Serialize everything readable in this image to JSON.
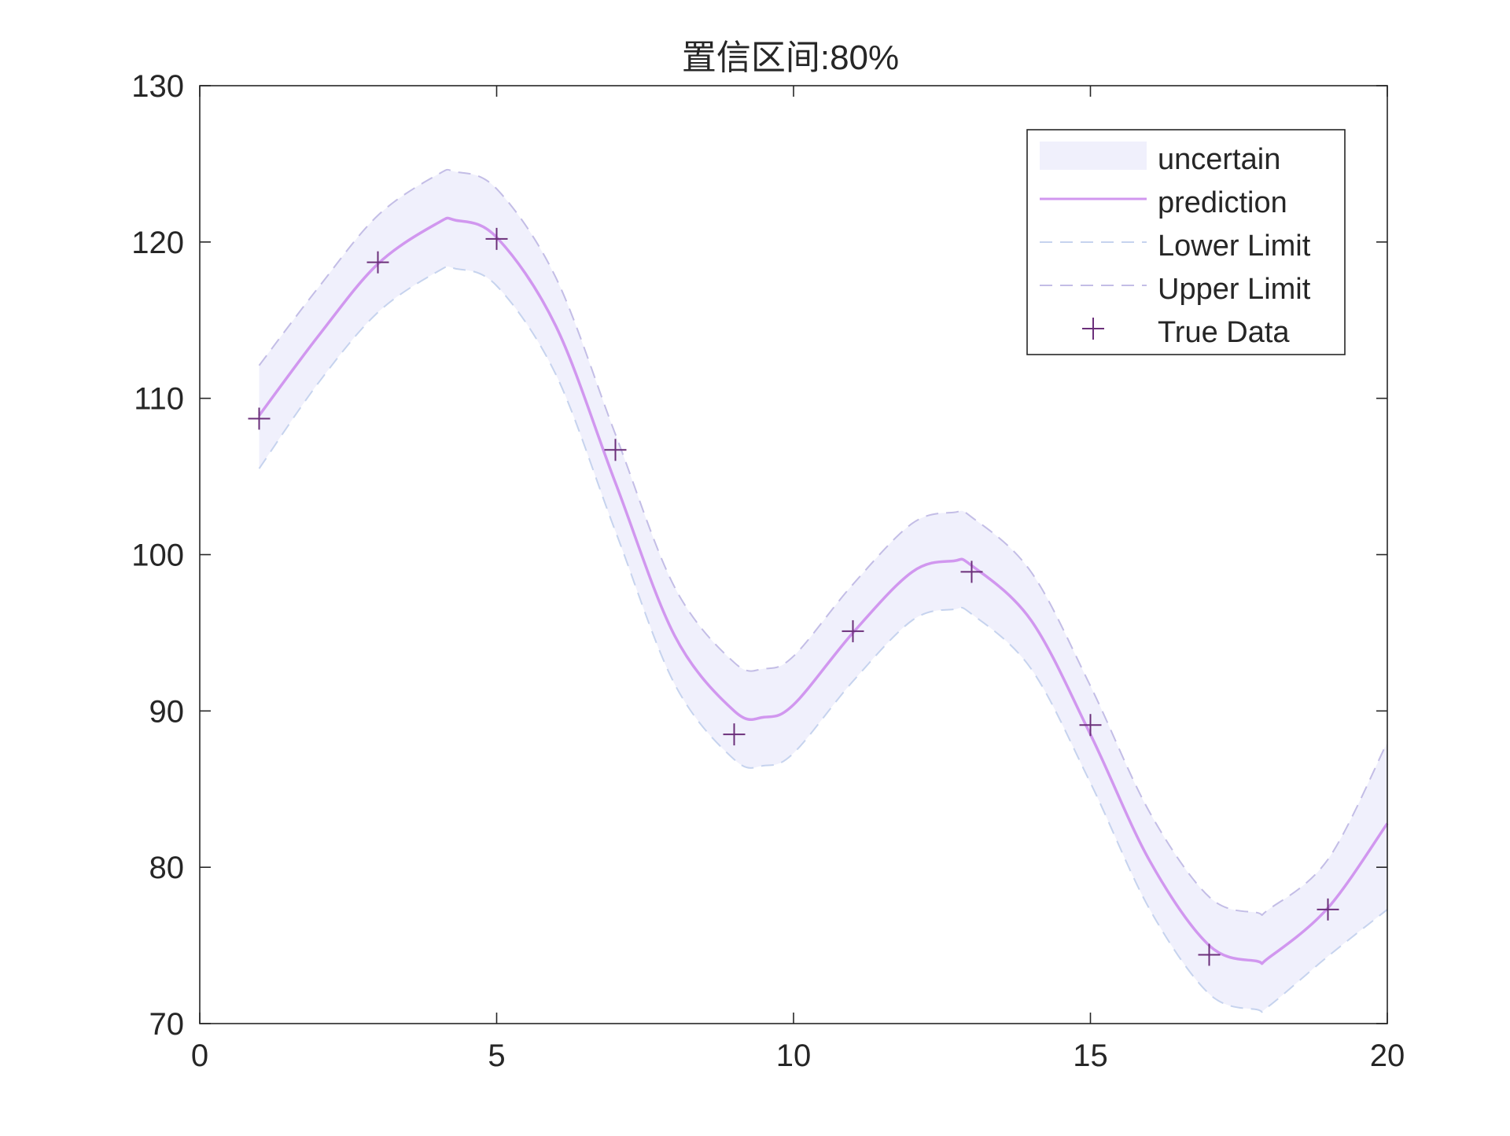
{
  "chart_data": {
    "type": "line",
    "title": "置信区间:80%",
    "xlabel": "",
    "ylabel": "",
    "xlim": [
      0,
      20
    ],
    "ylim": [
      70,
      130
    ],
    "xticks": [
      0,
      5,
      10,
      15,
      20
    ],
    "yticks": [
      70,
      80,
      90,
      100,
      110,
      120,
      130
    ],
    "xtick_labels": [
      "0",
      "5",
      "10",
      "15",
      "20"
    ],
    "ytick_labels": [
      "70",
      "80",
      "90",
      "100",
      "110",
      "120",
      "130"
    ],
    "grid": false,
    "legend_position": "top-right",
    "legend": {
      "band": "uncertain",
      "prediction": "prediction",
      "lower": "Lower  Limit",
      "upper": "Upper  Limit",
      "data": "True Data"
    },
    "series": [
      {
        "name": "prediction",
        "x": [
          1,
          2,
          3,
          4,
          4.3,
          5,
          6,
          7,
          8,
          9,
          9.5,
          10,
          11,
          12,
          12.7,
          13,
          14,
          15,
          16,
          17,
          17.8,
          18,
          19,
          20
        ],
        "values": [
          108.9,
          114.0,
          118.6,
          121.2,
          121.4,
          120.3,
          114.6,
          104.6,
          94.8,
          90.0,
          89.6,
          90.4,
          95.0,
          98.9,
          99.6,
          99.3,
          95.8,
          88.5,
          80.4,
          75.0,
          74.0,
          74.2,
          77.4,
          82.8
        ]
      },
      {
        "name": "Lower  Limit",
        "x": [
          1,
          2,
          3,
          4,
          4.3,
          5,
          6,
          7,
          8,
          9,
          9.5,
          10,
          11,
          12,
          12.7,
          13,
          14,
          15,
          16,
          17,
          17.8,
          18,
          19,
          20
        ],
        "values": [
          105.5,
          111.0,
          115.5,
          118.1,
          118.3,
          117.2,
          111.5,
          101.5,
          91.7,
          86.9,
          86.5,
          87.3,
          91.9,
          95.8,
          96.5,
          96.2,
          92.7,
          85.4,
          77.3,
          71.9,
          70.9,
          71.1,
          74.3,
          77.3
        ]
      },
      {
        "name": "Upper  Limit",
        "x": [
          1,
          2,
          3,
          4,
          4.3,
          5,
          6,
          7,
          8,
          9,
          9.5,
          10,
          11,
          12,
          12.7,
          13,
          14,
          15,
          16,
          17,
          17.8,
          18,
          19,
          20
        ],
        "values": [
          112.1,
          117.1,
          121.7,
          124.3,
          124.5,
          123.4,
          117.7,
          107.7,
          97.9,
          93.1,
          92.7,
          93.5,
          98.1,
          102.0,
          102.7,
          102.4,
          98.9,
          91.6,
          83.5,
          78.1,
          77.1,
          77.3,
          80.5,
          88.0
        ]
      },
      {
        "name": "True Data",
        "x": [
          1,
          3,
          5,
          7,
          9,
          11,
          13,
          15,
          17,
          19
        ],
        "values": [
          108.7,
          118.7,
          120.2,
          106.7,
          88.5,
          95.1,
          98.9,
          89.1,
          74.4,
          77.3
        ]
      }
    ],
    "colors": {
      "band": "#f0f0fc",
      "prediction": "#d197ef",
      "lower": "#c6d3ee",
      "upper": "#c3bde6",
      "data": "#6b2f7a",
      "axis": "#262626"
    }
  }
}
